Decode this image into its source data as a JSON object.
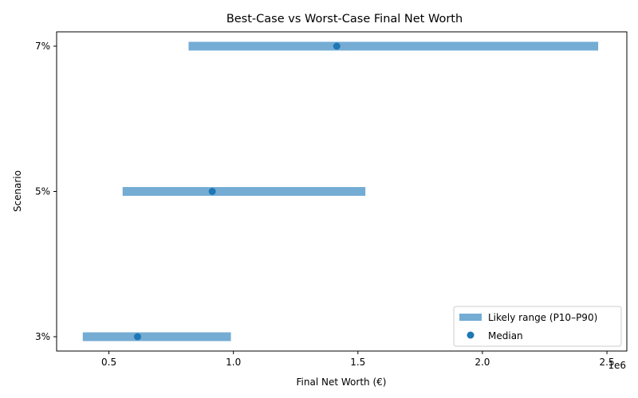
{
  "chart_data": {
    "type": "range",
    "title": "Best-Case vs Worst-Case Final Net Worth",
    "xlabel": "Final Net Worth (€)",
    "ylabel": "Scenario",
    "x_offset_label": "1e6",
    "xlim": [
      290000,
      2580000
    ],
    "x_ticks": [
      500000,
      1000000,
      1500000,
      2000000,
      2500000
    ],
    "x_tick_labels": [
      "0.5",
      "1.0",
      "1.5",
      "2.0",
      "2.5"
    ],
    "categories": [
      "3%",
      "5%",
      "7%"
    ],
    "p10": [
      395000,
      555000,
      820000
    ],
    "p90": [
      990000,
      1530000,
      2465000
    ],
    "median": [
      615000,
      915000,
      1415000
    ],
    "series": [
      {
        "name": "Likely range (P10–P90)",
        "color": "#74acd4"
      },
      {
        "name": "Median",
        "color": "#1f77b4"
      }
    ],
    "legend_position": "bottom-right",
    "grid": false
  }
}
